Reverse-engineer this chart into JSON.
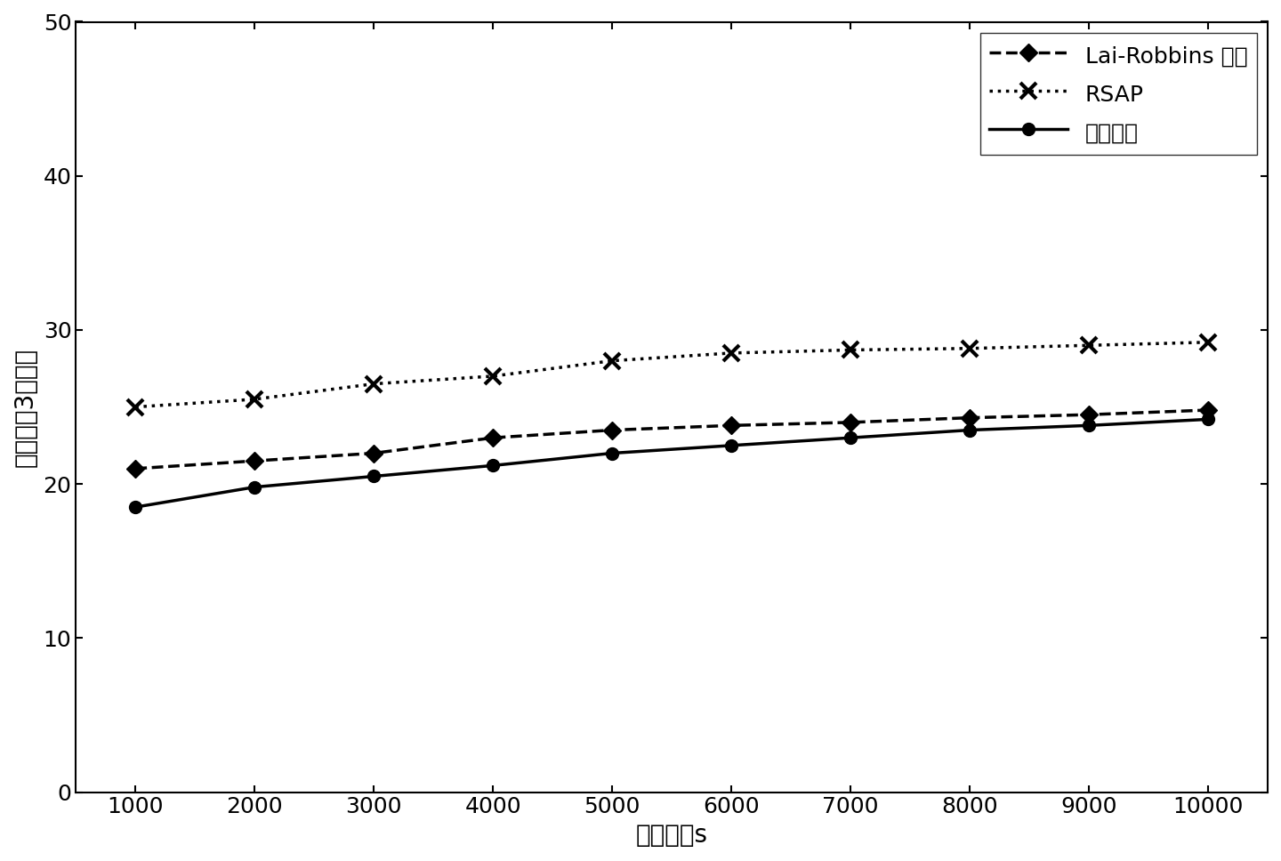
{
  "x": [
    1000,
    2000,
    3000,
    4000,
    5000,
    6000,
    7000,
    8000,
    9000,
    10000
  ],
  "lai_robbins": [
    21.0,
    21.5,
    22.0,
    23.0,
    23.5,
    23.8,
    24.0,
    24.3,
    24.5,
    24.8
  ],
  "rsap": [
    25.0,
    25.5,
    26.5,
    27.0,
    28.0,
    28.5,
    28.7,
    28.8,
    29.0,
    29.2
  ],
  "lower_bound": [
    18.5,
    19.8,
    20.5,
    21.2,
    22.0,
    22.5,
    23.0,
    23.5,
    23.8,
    24.2
  ],
  "xlabel": "虚拟时间s",
  "ylabel": "接入信道3的次数",
  "legend_labels": [
    "Lai-Robbins 策略",
    "RSAP",
    "理论下限"
  ],
  "xlim": [
    500,
    10500
  ],
  "ylim": [
    0,
    50
  ],
  "xticks": [
    1000,
    2000,
    3000,
    4000,
    5000,
    6000,
    7000,
    8000,
    9000,
    10000
  ],
  "yticks": [
    0,
    10,
    20,
    30,
    40,
    50
  ],
  "line_color": "#000000",
  "background_color": "#ffffff",
  "fontsize_label": 20,
  "fontsize_tick": 18,
  "fontsize_legend": 18,
  "linewidth": 2.5,
  "markersize": 10
}
